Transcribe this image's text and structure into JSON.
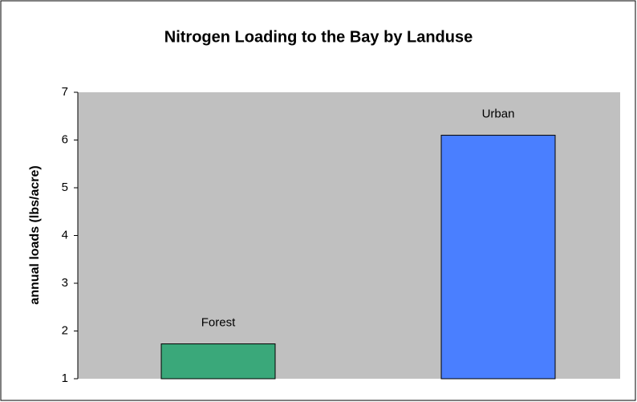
{
  "chart_data": {
    "type": "bar",
    "title": "Nitrogen Loading to the Bay by Landuse",
    "ylabel": "annual loads (lbs/acre)",
    "categories": [
      "Forest",
      "Urban"
    ],
    "values": [
      1.73,
      6.1
    ],
    "colors": [
      "#3aa87a",
      "#4a7fff"
    ],
    "ylim": [
      1,
      7
    ],
    "yticks": [
      1,
      2,
      3,
      4,
      5,
      6,
      7
    ],
    "grid": false
  }
}
